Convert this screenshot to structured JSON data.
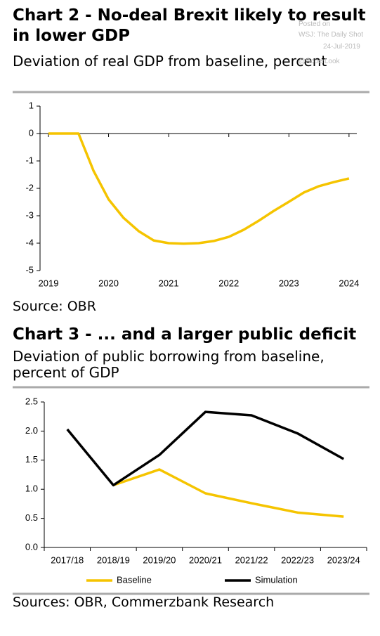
{
  "chart_data": [
    {
      "type": "line",
      "title": "Chart 2 - No-deal Brexit likely to result in lower GDP",
      "subtitle": "Deviation of real GDP from baseline, percent",
      "source": "Source: OBR",
      "x": [
        2019,
        2019.5,
        2019.75,
        2020,
        2020.25,
        2020.5,
        2020.75,
        2021,
        2021.25,
        2021.5,
        2021.75,
        2022,
        2022.25,
        2022.5,
        2022.75,
        2023,
        2023.25,
        2023.5,
        2023.75,
        2024
      ],
      "values": [
        0,
        0,
        -1.36,
        -2.4,
        -3.08,
        -3.56,
        -3.9,
        -4.0,
        -4.02,
        -4.0,
        -3.92,
        -3.77,
        -3.51,
        -3.18,
        -2.82,
        -2.49,
        -2.15,
        -1.92,
        -1.77,
        -1.64
      ],
      "color": "#f5c400",
      "xlim": [
        2018.86,
        2024.13
      ],
      "xticks": [
        2019,
        2020,
        2021,
        2022,
        2023,
        2024
      ],
      "ylim": [
        -5,
        1
      ],
      "yticks": [
        -5,
        -4,
        -3,
        -2,
        -1,
        0,
        1
      ]
    },
    {
      "type": "line",
      "title": "Chart 3 - ... and a larger public deficit",
      "subtitle": "Deviation of public borrowing from baseline, percent of GDP",
      "source": "Sources: OBR, Commerzbank Research",
      "categories": [
        "2017/18",
        "2018/19",
        "2019/20",
        "2020/21",
        "2021/22",
        "2022/23",
        "2023/24"
      ],
      "series": [
        {
          "name": "Baseline",
          "color": "#f5c400",
          "values": [
            null,
            1.07,
            1.34,
            0.93,
            0.76,
            0.6,
            0.53
          ]
        },
        {
          "name": "Simulation",
          "color": "#000000",
          "values": [
            2.03,
            1.07,
            1.59,
            2.33,
            2.27,
            1.96,
            1.52
          ]
        }
      ],
      "ylim": [
        0,
        2.5
      ],
      "yticks": [
        {
          "value": 0,
          "label": "0.0"
        },
        0.5,
        {
          "value": 1,
          "label": "1.0"
        },
        1.5,
        {
          "value": 2,
          "label": "2.0"
        },
        2.5
      ],
      "legend": "bottom"
    }
  ],
  "watermark": [
    "Posted on",
    "WSJ: The Daily Shot",
    "24-Jul-2019",
    "@SoberLook"
  ]
}
